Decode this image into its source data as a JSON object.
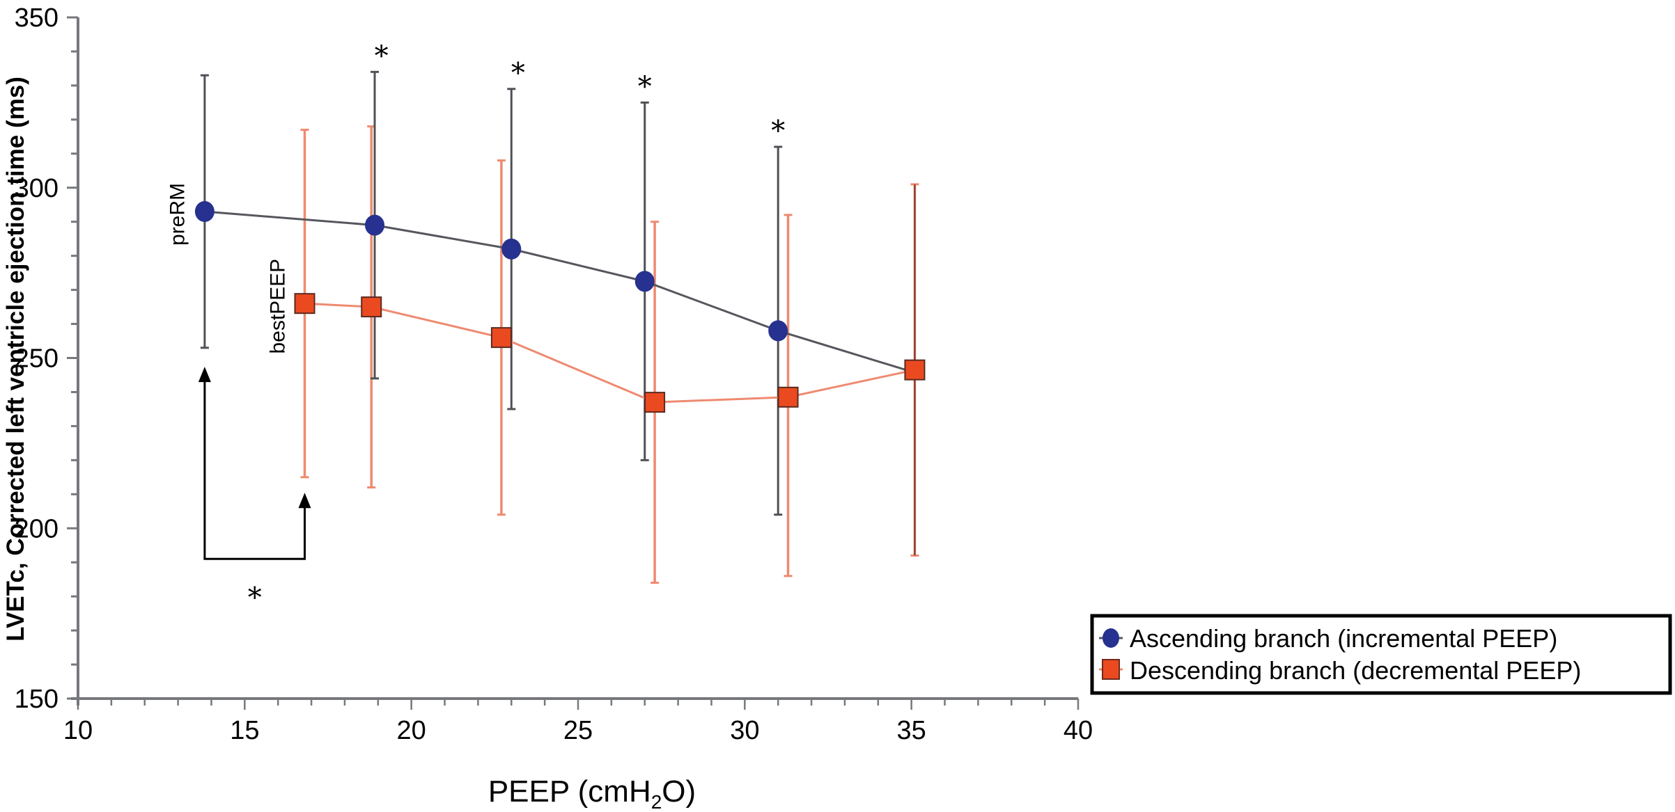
{
  "chart_data": {
    "type": "line",
    "title": "",
    "xlabel": "PEEP (cmH2O)",
    "xlabel_parts": {
      "pre": "PEEP (cmH",
      "sub": "2",
      "post": "O)"
    },
    "ylabel": "LVETc, Corrected left ventricle ejection time (ms)",
    "xlim": [
      10,
      40
    ],
    "ylim": [
      150,
      350
    ],
    "x_ticks": [
      10,
      15,
      20,
      25,
      30,
      35,
      40
    ],
    "x_minor_step": 1,
    "y_ticks": [
      150,
      200,
      250,
      300,
      350
    ],
    "y_minor_step": 10,
    "grid": false,
    "legend_position": "bottom-right",
    "series": [
      {
        "name": "Ascending branch (incremental PEEP)",
        "marker": "circle",
        "color": "#27318f",
        "line_color": "#55575d",
        "x": [
          13.8,
          18.9,
          23.0,
          27.0,
          31.0,
          35.0
        ],
        "y": [
          293,
          289,
          282,
          272.5,
          258,
          246
        ],
        "err_low": [
          253,
          244,
          235,
          220,
          204,
          null
        ],
        "err_high": [
          333,
          334,
          329,
          325,
          312,
          null
        ]
      },
      {
        "name": "Descending branch (decremental PEEP)",
        "marker": "square",
        "color": "#eb4a21",
        "line_color": "#ee8a70",
        "x": [
          16.8,
          18.8,
          22.7,
          27.3,
          31.3,
          35.1
        ],
        "y": [
          266,
          265,
          256,
          237,
          238.5,
          246.5
        ],
        "err_low": [
          215,
          212,
          204,
          184,
          186,
          192
        ],
        "err_high": [
          317,
          318,
          308,
          290,
          292,
          301
        ]
      }
    ],
    "annotations": [
      {
        "type": "text",
        "text": "preRM",
        "x": 13.4,
        "y": 293,
        "rotated": true
      },
      {
        "type": "text",
        "text": "bestPEEP",
        "x": 16.4,
        "y": 266,
        "rotated": true
      },
      {
        "type": "star",
        "text": "*",
        "x": 19.1,
        "y": 340
      },
      {
        "type": "star",
        "text": "*",
        "x": 23.2,
        "y": 335
      },
      {
        "type": "star",
        "text": "*",
        "x": 27.0,
        "y": 331
      },
      {
        "type": "star",
        "text": "*",
        "x": 31.0,
        "y": 318
      },
      {
        "type": "bracket",
        "from_x": 13.8,
        "to_x": 16.8,
        "from_top_y": 247,
        "to_top_y": 210,
        "bottom_y": 191,
        "label": "*",
        "label_y": 181
      }
    ]
  }
}
